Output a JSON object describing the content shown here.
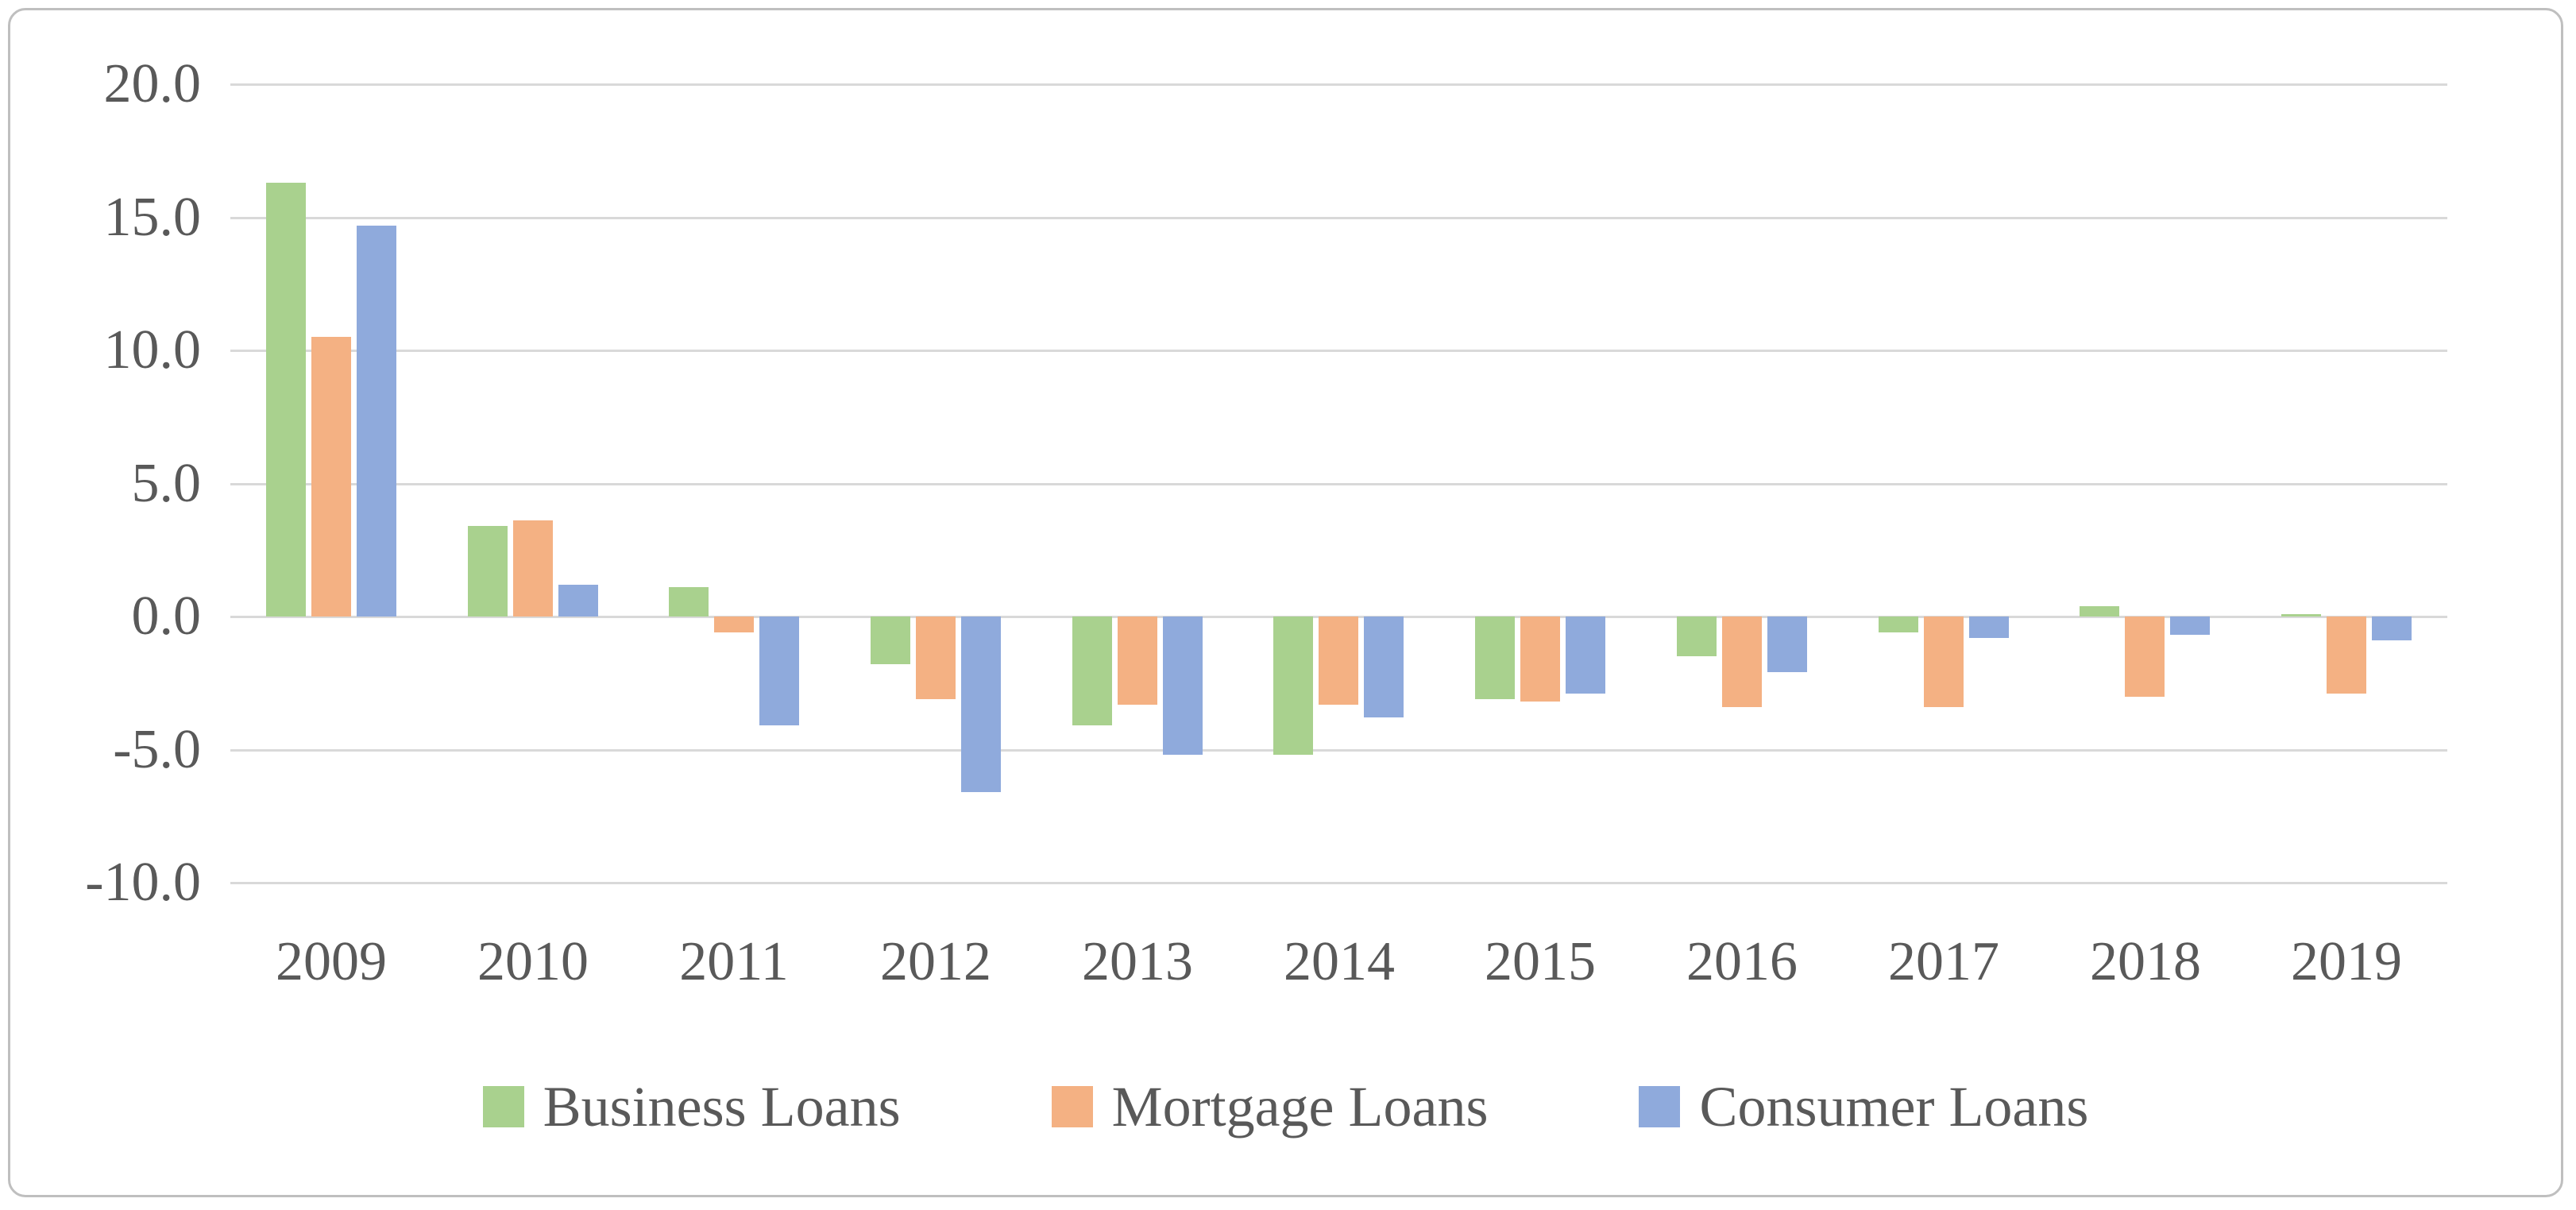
{
  "chart_data": {
    "type": "bar",
    "title": "",
    "categories": [
      "2009",
      "2010",
      "2011",
      "2012",
      "2013",
      "2014",
      "2015",
      "2016",
      "2017",
      "2018",
      "2019"
    ],
    "series": [
      {
        "name": "Business Loans",
        "color": "#A9D18E",
        "values": [
          16.3,
          3.4,
          1.1,
          -1.8,
          -4.1,
          -5.2,
          -3.1,
          -1.5,
          -0.6,
          0.4,
          0.1
        ]
      },
      {
        "name": "Mortgage Loans",
        "color": "#F4B183",
        "values": [
          10.5,
          3.6,
          -0.6,
          -3.1,
          -3.3,
          -3.3,
          -3.2,
          -3.4,
          -3.4,
          -3.0,
          -2.9
        ]
      },
      {
        "name": "Consumer Loans",
        "color": "#8FAADC",
        "values": [
          14.7,
          1.2,
          -4.1,
          -6.6,
          -5.2,
          -3.8,
          -2.9,
          -2.1,
          -0.8,
          -0.7,
          -0.9
        ]
      }
    ],
    "y_ticks": [
      20.0,
      15.0,
      10.0,
      5.0,
      0.0,
      -5.0,
      -10.0
    ],
    "y_tick_labels": [
      "20.0",
      "15.0",
      "10.0",
      "5.0",
      "0.0",
      "-5.0",
      "-10.0"
    ],
    "ylim": [
      -10,
      20
    ],
    "xlabel": "",
    "ylabel": "",
    "grid": "horizontal",
    "legend_position": "bottom",
    "gridline_color": "#D9D9D9",
    "axis_text_color": "#595959",
    "frame_color": "#BFBFBF"
  }
}
